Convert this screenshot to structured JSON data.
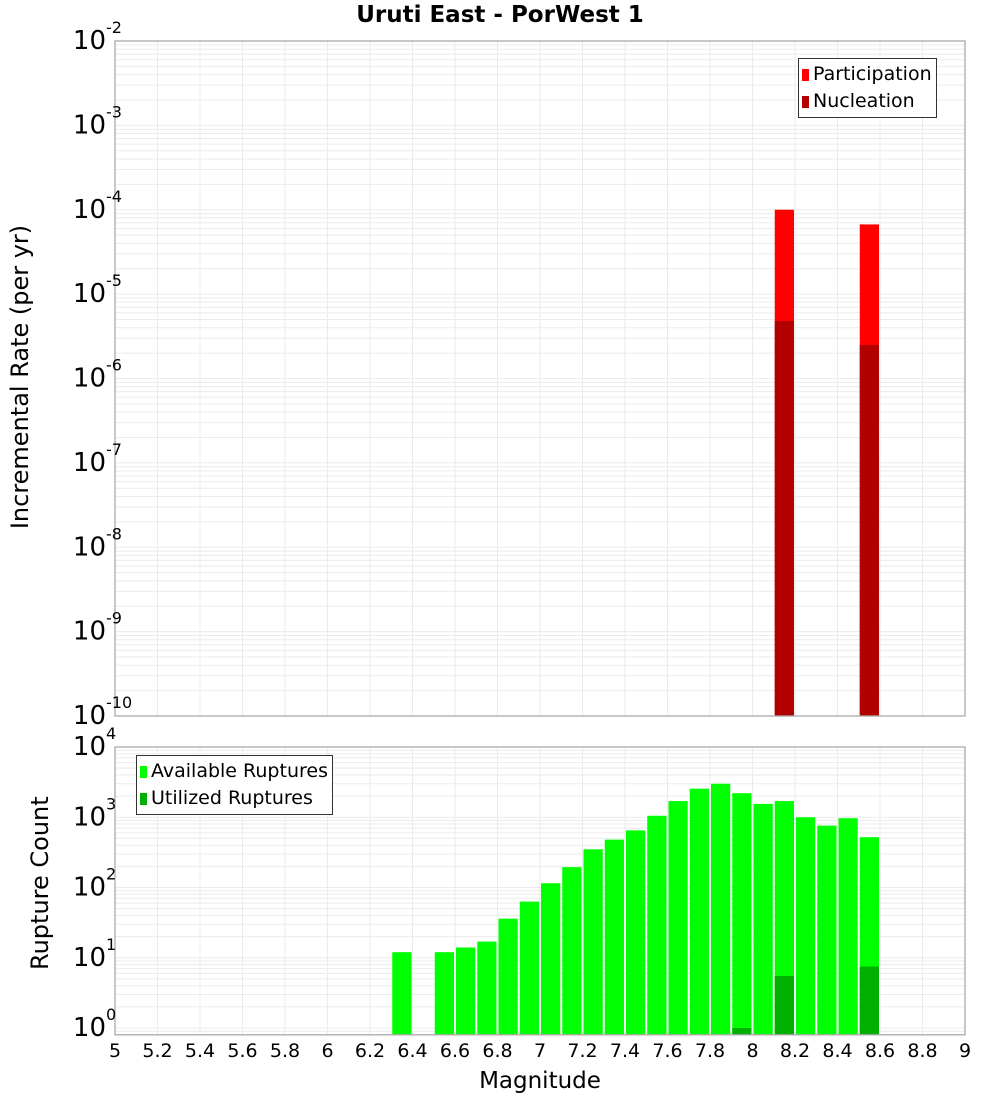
{
  "title": "Uruti East - PorWest 1",
  "colors": {
    "participation": "#ff0000",
    "nucleation": "#b20000",
    "available": "#00ff00",
    "utilized": "#00b000",
    "grid": "#ebebeb",
    "axis": "#aaaaaa"
  },
  "upper": {
    "ylabel": "Incremental Rate (per yr)",
    "legend": [
      {
        "label": "Participation",
        "color": "#ff0000"
      },
      {
        "label": "Nucleation",
        "color": "#b20000"
      }
    ]
  },
  "lower": {
    "ylabel": "Rupture Count",
    "xlabel": "Magnitude",
    "legend": [
      {
        "label": "Available Ruptures",
        "color": "#00ff00"
      },
      {
        "label": "Utilized Ruptures",
        "color": "#00b000"
      }
    ]
  },
  "chart_data": [
    {
      "type": "bar",
      "title": "Uruti East - PorWest 1",
      "xlabel": "",
      "ylabel": "Incremental Rate (per yr)",
      "yscale": "log",
      "xlim": [
        5,
        9
      ],
      "ylim": [
        1e-10,
        0.01
      ],
      "y_ticks": [
        "10^-2",
        "10^-3",
        "10^-4",
        "10^-5",
        "10^-6",
        "10^-7",
        "10^-8",
        "10^-9",
        "10^-10"
      ],
      "grid": true,
      "legend_position": "top-right",
      "bin_width": 0.1,
      "x": [
        8.15,
        8.55
      ],
      "series": [
        {
          "name": "Participation",
          "color": "#ff0000",
          "values": [
            0.0001,
            6.7e-05
          ]
        },
        {
          "name": "Nucleation",
          "color": "#b20000",
          "values": [
            4.8e-06,
            2.5e-06
          ]
        }
      ]
    },
    {
      "type": "bar",
      "title": "",
      "xlabel": "Magnitude",
      "ylabel": "Rupture Count",
      "yscale": "log",
      "xlim": [
        5,
        9
      ],
      "ylim": [
        0.8,
        10000
      ],
      "x_ticks": [
        "5",
        "5.2",
        "5.4",
        "5.6",
        "5.8",
        "6",
        "6.2",
        "6.4",
        "6.6",
        "6.8",
        "7",
        "7.2",
        "7.4",
        "7.6",
        "7.8",
        "8",
        "8.2",
        "8.4",
        "8.6",
        "8.8",
        "9"
      ],
      "y_ticks": [
        "10^4",
        "10^3",
        "10^2",
        "10^1",
        "10^0"
      ],
      "grid": true,
      "legend_position": "top-left",
      "bin_width": 0.1,
      "x": [
        6.35,
        6.55,
        6.65,
        6.75,
        6.85,
        6.95,
        7.05,
        7.15,
        7.25,
        7.35,
        7.45,
        7.55,
        7.65,
        7.75,
        7.85,
        7.95,
        8.05,
        8.15,
        8.25,
        8.35,
        8.45,
        8.55
      ],
      "series": [
        {
          "name": "Available Ruptures",
          "color": "#00ff00",
          "values": [
            12,
            12,
            14,
            17,
            36,
            63,
            115,
            195,
            350,
            480,
            650,
            1050,
            1700,
            2550,
            3000,
            2200,
            1550,
            1700,
            1000,
            760,
            970,
            520
          ]
        },
        {
          "name": "Utilized Ruptures",
          "color": "#00b000",
          "values": [
            0,
            0,
            0,
            0,
            0,
            0,
            0,
            0,
            0,
            0,
            0,
            0,
            0,
            0,
            0,
            1,
            0,
            5.5,
            0,
            0,
            0,
            7.5
          ]
        }
      ]
    }
  ]
}
